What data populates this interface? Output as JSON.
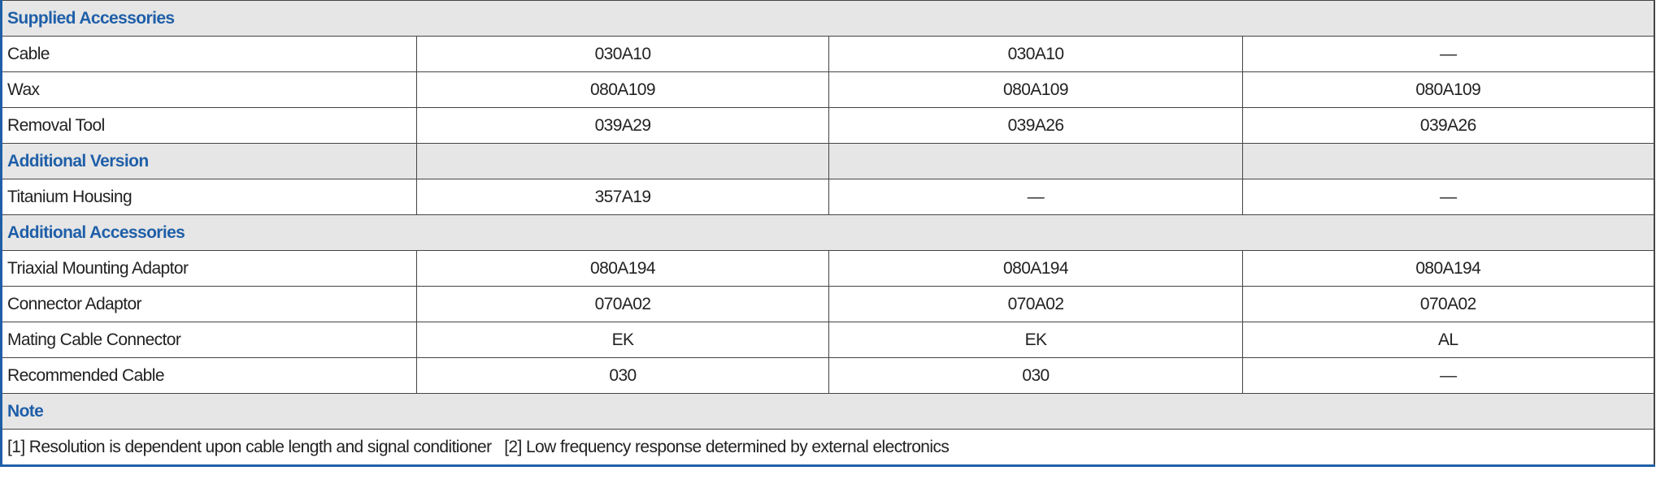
{
  "colors": {
    "section_text": "#1f5fa8",
    "section_bg": "#e6e6e6",
    "frame": "#1f5fa8"
  },
  "sections": [
    {
      "title": "Supplied Accessories",
      "rows": [
        {
          "label": "Cable",
          "values": [
            "030A10",
            "030A10",
            "—"
          ]
        },
        {
          "label": "Wax",
          "values": [
            "080A109",
            "080A109",
            "080A109"
          ]
        },
        {
          "label": "Removal Tool",
          "values": [
            "039A29",
            "039A26",
            "039A26"
          ]
        }
      ]
    },
    {
      "title": "Additional Version",
      "rows": [
        {
          "label": "Titanium Housing",
          "values": [
            "357A19",
            "—",
            "—"
          ]
        }
      ]
    },
    {
      "title": "Additional Accessories",
      "rows": [
        {
          "label": "Triaxial Mounting Adaptor",
          "values": [
            "080A194",
            "080A194",
            "080A194"
          ]
        },
        {
          "label": "Connector Adaptor",
          "values": [
            "070A02",
            "070A02",
            "070A02"
          ]
        },
        {
          "label": "Mating Cable Connector",
          "values": [
            "EK",
            "EK",
            "AL"
          ]
        },
        {
          "label": "Recommended Cable",
          "values": [
            "030",
            "030",
            "—"
          ]
        }
      ]
    },
    {
      "title": "Note",
      "note": "[1] Resolution is dependent upon cable length and signal conditioner   [2] Low frequency response determined by external electronics"
    }
  ]
}
